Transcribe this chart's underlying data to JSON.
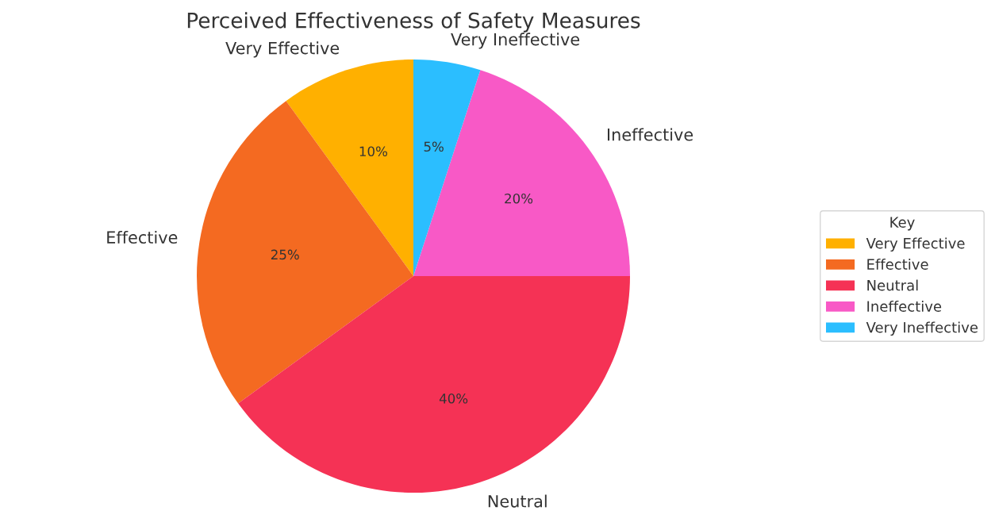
{
  "chart_data": {
    "type": "pie",
    "title": "Perceived Effectiveness of Safety Measures",
    "legend_title": "Key",
    "legend": "right",
    "categories": [
      "Very Effective",
      "Effective",
      "Neutral",
      "Ineffective",
      "Very Ineffective"
    ],
    "values": [
      10,
      25,
      40,
      20,
      5
    ],
    "colors": [
      "#ffb000",
      "#f46a21",
      "#f53255",
      "#f859c6",
      "#2bbeff"
    ],
    "value_labels": [
      "10%",
      "25%",
      "40%",
      "20%",
      "5%"
    ]
  }
}
